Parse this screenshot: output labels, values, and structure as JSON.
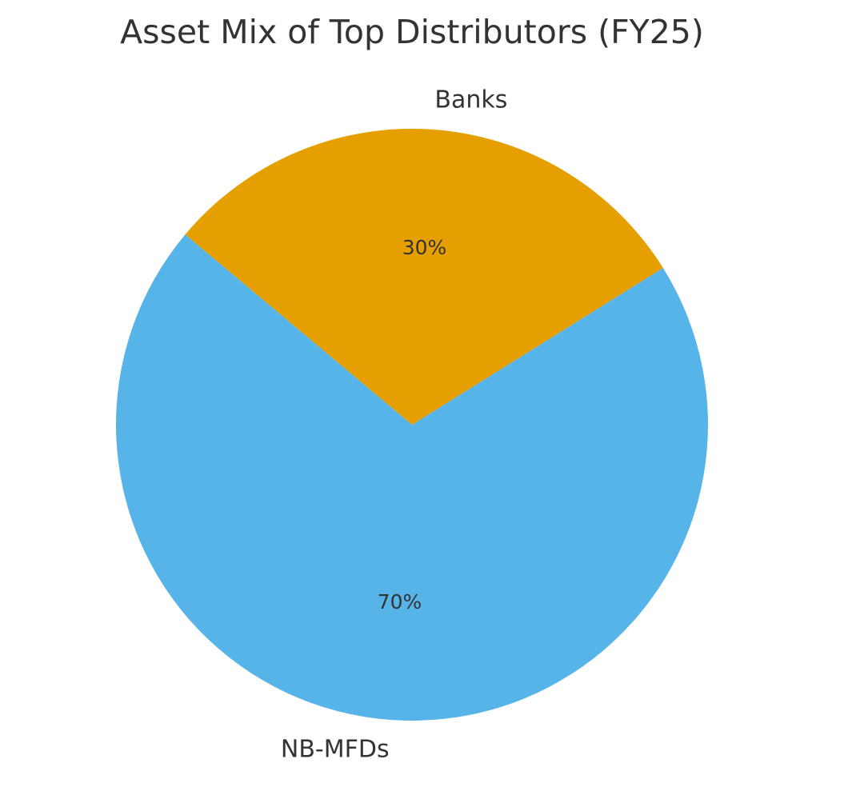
{
  "chart_data": {
    "type": "pie",
    "title": "Asset Mix of Top Distributors (FY25)",
    "categories": [
      "NB-MFDs",
      "Banks"
    ],
    "values": [
      70,
      30
    ],
    "value_labels": [
      "70%",
      "30%"
    ],
    "colors": [
      "#56B4E9",
      "#E69F00"
    ],
    "start_angle_deg": 140,
    "direction": "counterclockwise",
    "legend": "none"
  }
}
